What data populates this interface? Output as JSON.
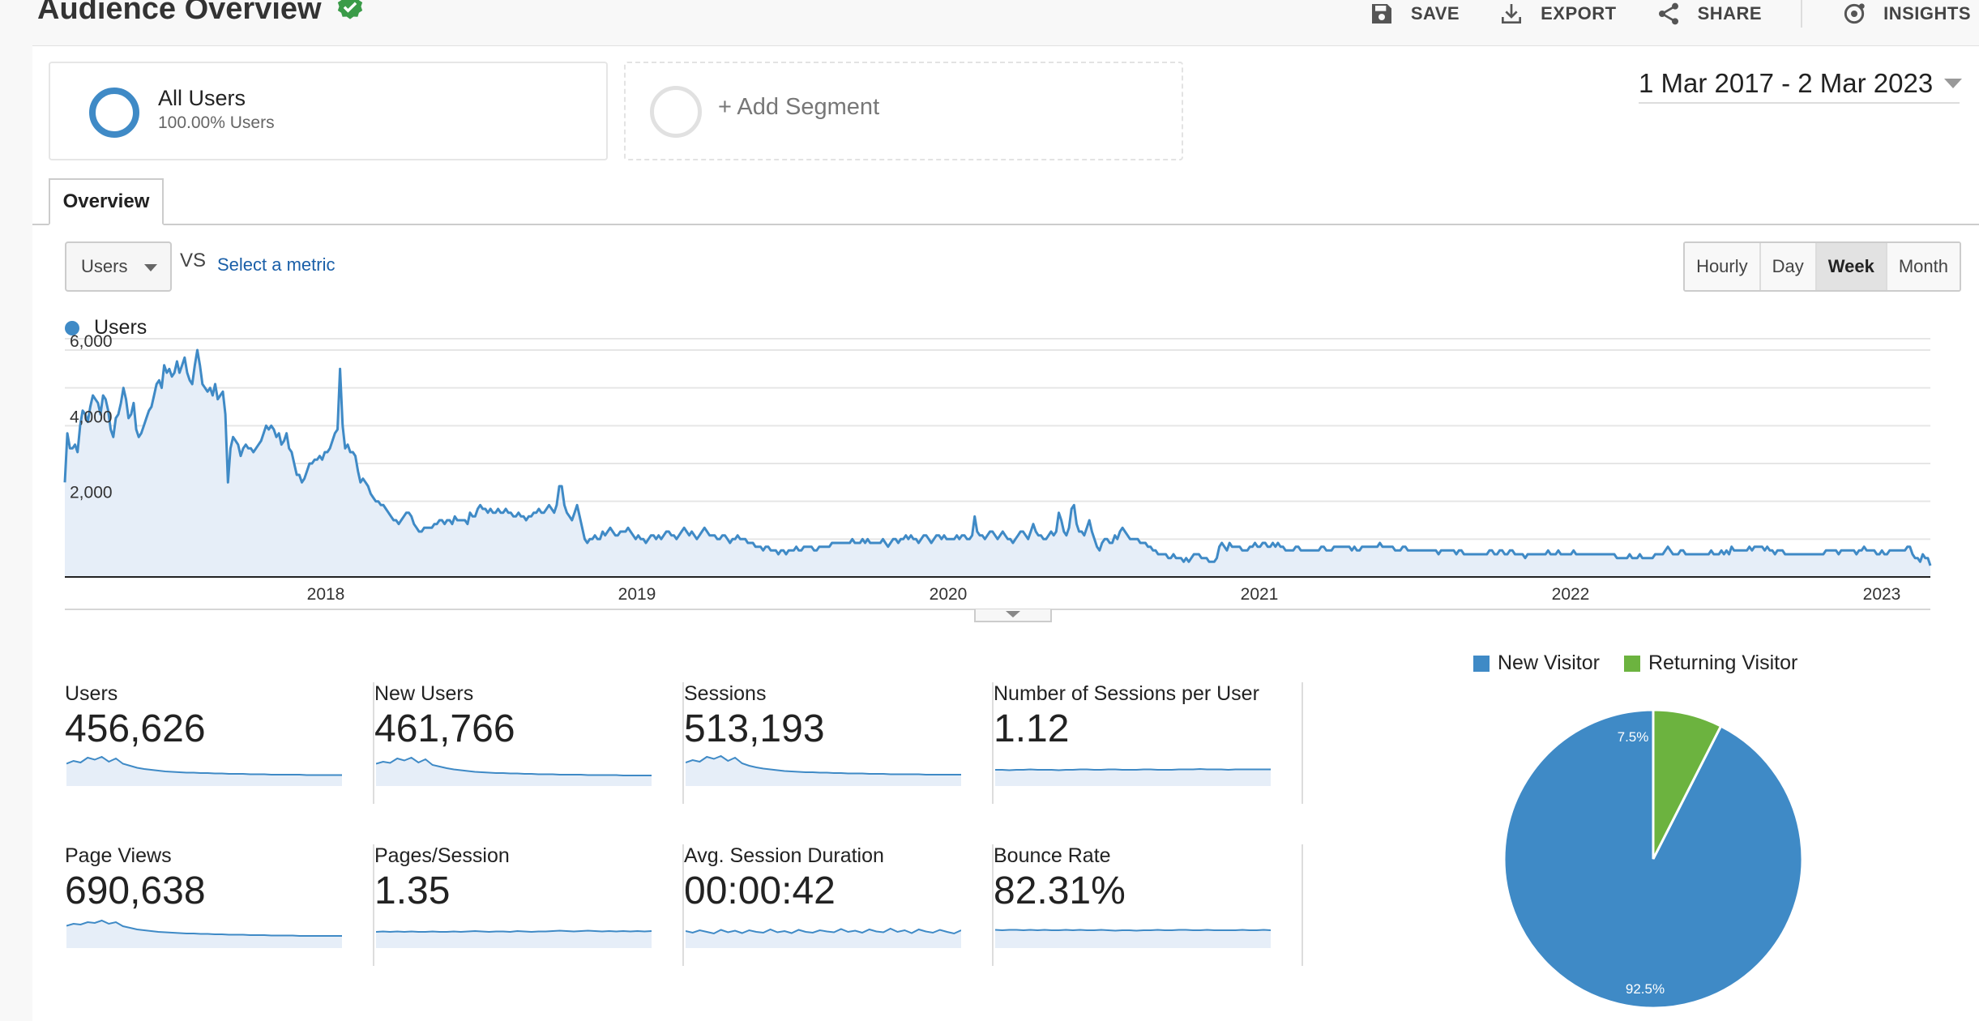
{
  "header": {
    "title": "Audience Overview",
    "verified_icon": "verified-check-icon",
    "actions": [
      {
        "label": "SAVE",
        "icon": "save-icon"
      },
      {
        "label": "EXPORT",
        "icon": "export-icon"
      },
      {
        "label": "SHARE",
        "icon": "share-icon"
      },
      {
        "label": "INSIGHTS",
        "icon": "insights-icon"
      }
    ]
  },
  "segments": {
    "all": {
      "name": "All Users",
      "sub": "100.00% Users"
    },
    "add_label": "+ Add Segment"
  },
  "date_range": "1 Mar 2017 - 2 Mar 2023",
  "tabs": {
    "overview": "Overview"
  },
  "metric_picker": {
    "selected": "Users",
    "vs": "VS",
    "select_metric": "Select a metric"
  },
  "granularity": {
    "options": [
      "Hourly",
      "Day",
      "Week",
      "Month"
    ],
    "active": "Week"
  },
  "colors": {
    "accent": "#3f8ac6",
    "fill": "#e6eef8",
    "returning": "#6cb33f",
    "text": "#222222"
  },
  "chart_data": [
    {
      "type": "area",
      "series": [
        {
          "name": "Users",
          "values": [
            2500,
            3800,
            3400,
            3400,
            3500,
            3300,
            4000,
            4400,
            4300,
            4100,
            4500,
            4800,
            4700,
            4600,
            4300,
            4800,
            4700,
            4400,
            3900,
            3700,
            4200,
            4300,
            4600,
            5000,
            4700,
            4200,
            4300,
            4600,
            3900,
            3700,
            3800,
            4000,
            4200,
            4400,
            4500,
            4800,
            5100,
            5200,
            5000,
            5600,
            5400,
            5500,
            5300,
            5400,
            5700,
            5400,
            5600,
            5800,
            5400,
            5200,
            5100,
            5600,
            6000,
            5600,
            5100,
            5000,
            4900,
            5000,
            4800,
            5100,
            4700,
            4800,
            4900,
            4300,
            2500,
            3400,
            3700,
            3600,
            3500,
            3200,
            3400,
            3500,
            3400,
            3400,
            3300,
            3400,
            3500,
            3600,
            3800,
            4000,
            3900,
            4000,
            3900,
            3700,
            3800,
            3500,
            3600,
            3800,
            3400,
            3300,
            3000,
            2700,
            2700,
            2500,
            2600,
            2800,
            3000,
            3000,
            3100,
            3100,
            3200,
            3100,
            3300,
            3300,
            3400,
            3600,
            3800,
            3900,
            5500,
            4000,
            3400,
            3500,
            3300,
            3300,
            3200,
            2800,
            2500,
            2600,
            2500,
            2400,
            2200,
            2100,
            2000,
            2000,
            1900,
            1900,
            1800,
            1700,
            1600,
            1500,
            1500,
            1400,
            1500,
            1600,
            1700,
            1700,
            1600,
            1400,
            1300,
            1200,
            1200,
            1300,
            1300,
            1300,
            1300,
            1400,
            1400,
            1500,
            1500,
            1400,
            1500,
            1500,
            1400,
            1600,
            1500,
            1500,
            1500,
            1500,
            1400,
            1700,
            1600,
            1600,
            1800,
            1900,
            1800,
            1800,
            1700,
            1800,
            1700,
            1700,
            1800,
            1700,
            1700,
            1800,
            1700,
            1700,
            1600,
            1600,
            1700,
            1600,
            1600,
            1500,
            1600,
            1600,
            1700,
            1700,
            1800,
            1700,
            1700,
            1800,
            1900,
            1800,
            1700,
            1900,
            2400,
            2400,
            1900,
            1700,
            1600,
            1500,
            1700,
            1900,
            1600,
            1300,
            1000,
            900,
            1000,
            1000,
            1100,
            1000,
            1000,
            1200,
            1100,
            1200,
            1300,
            1200,
            1100,
            1100,
            1200,
            1200,
            1200,
            1300,
            1200,
            1100,
            1000,
            1100,
            1000,
            1000,
            900,
            1000,
            1100,
            1100,
            1000,
            1100,
            1000,
            1100,
            1200,
            1200,
            1100,
            1100,
            1000,
            1100,
            1200,
            1300,
            1200,
            1100,
            1200,
            1100,
            1000,
            1100,
            1200,
            1300,
            1200,
            1100,
            1100,
            1100,
            1000,
            1000,
            1100,
            1100,
            1000,
            900,
            1000,
            1000,
            1100,
            1000,
            1000,
            1000,
            900,
            900,
            900,
            800,
            800,
            800,
            700,
            800,
            800,
            700,
            700,
            700,
            600,
            700,
            700,
            600,
            700,
            700,
            700,
            800,
            700,
            700,
            800,
            800,
            800,
            800,
            700,
            700,
            800,
            800,
            800,
            800,
            800,
            900,
            900,
            900,
            900,
            900,
            900,
            900,
            900,
            1000,
            900,
            900,
            900,
            1000,
            900,
            1000,
            900,
            900,
            900,
            900,
            900,
            1000,
            900,
            800,
            900,
            1000,
            1000,
            900,
            1000,
            1000,
            1100,
            1000,
            1100,
            1000,
            1000,
            900,
            1000,
            1100,
            1100,
            1000,
            900,
            1000,
            1100,
            1100,
            1000,
            1100,
            1000,
            1000,
            1000,
            1000,
            1100,
            1000,
            1100,
            1100,
            1000,
            1000,
            1100,
            1600,
            1200,
            1100,
            1100,
            1000,
            1100,
            1200,
            1200,
            1100,
            1000,
            1100,
            1200,
            1100,
            1000,
            1000,
            900,
            1000,
            1100,
            1200,
            1200,
            1100,
            1000,
            1200,
            1400,
            1200,
            1100,
            1100,
            1000,
            1000,
            1100,
            1200,
            1100,
            1200,
            1700,
            1500,
            1200,
            1100,
            1300,
            1800,
            1900,
            1400,
            1200,
            1200,
            1100,
            1300,
            1500,
            1200,
            1000,
            800,
            700,
            900,
            1000,
            1000,
            900,
            900,
            1100,
            1000,
            1200,
            1300,
            1200,
            1100,
            1000,
            1000,
            1000,
            1000,
            900,
            900,
            900,
            800,
            800,
            700,
            700,
            600,
            600,
            600,
            600,
            500,
            500,
            600,
            500,
            500,
            500,
            400,
            500,
            400,
            500,
            600,
            600,
            600,
            500,
            500,
            500,
            400,
            400,
            400,
            500,
            800,
            900,
            800,
            700,
            900,
            800,
            800,
            800,
            800,
            700,
            700,
            700,
            800,
            800,
            900,
            800,
            800,
            900,
            900,
            800,
            800,
            900,
            800,
            900,
            800,
            800,
            700,
            700,
            700,
            700,
            800,
            800,
            700,
            700,
            700,
            700,
            700,
            700,
            700,
            700,
            800,
            800,
            700,
            700,
            700,
            800,
            800,
            800,
            800,
            800,
            800,
            800,
            700,
            800,
            700,
            700,
            800,
            800,
            800,
            800,
            800,
            800,
            800,
            900,
            800,
            800,
            800,
            800,
            800,
            700,
            700,
            700,
            800,
            800,
            700,
            700,
            700,
            700,
            700,
            700,
            700,
            700,
            700,
            700,
            700,
            700,
            600,
            700,
            700,
            700,
            700,
            700,
            700,
            600,
            700,
            700,
            600,
            600,
            600,
            600,
            600,
            600,
            600,
            600,
            600,
            600,
            700,
            700,
            600,
            600,
            700,
            700,
            600,
            600,
            700,
            700,
            600,
            600,
            600,
            600,
            500,
            600,
            600,
            600,
            600,
            600,
            600,
            600,
            600,
            700,
            600,
            600,
            600,
            700,
            600,
            600,
            600,
            600,
            600,
            700,
            600,
            600,
            600,
            600,
            600,
            600,
            600,
            600,
            600,
            600,
            600,
            600,
            600,
            600,
            600,
            600,
            500,
            500,
            500,
            500,
            500,
            600,
            500,
            500,
            500,
            600,
            500,
            500,
            500,
            500,
            500,
            600,
            600,
            600,
            600,
            700,
            800,
            700,
            600,
            600,
            600,
            700,
            700,
            600,
            600,
            600,
            600,
            600,
            600,
            600,
            600,
            600,
            600,
            700,
            600,
            600,
            600,
            700,
            600,
            700,
            600,
            800,
            700,
            700,
            700,
            700,
            700,
            700,
            800,
            700,
            800,
            800,
            800,
            800,
            700,
            800,
            700,
            700,
            600,
            700,
            700,
            700,
            600,
            600,
            600,
            600,
            600,
            600,
            600,
            600,
            600,
            600,
            600,
            600,
            600,
            600,
            600,
            600,
            700,
            700,
            700,
            700,
            700,
            600,
            700,
            700,
            700,
            700,
            700,
            700,
            600,
            700,
            700,
            800,
            700,
            700,
            700,
            700,
            600,
            600,
            700,
            600,
            600,
            700,
            700,
            700,
            700,
            700,
            700,
            700,
            800,
            800,
            600,
            500,
            500,
            400,
            600,
            500,
            500,
            300
          ]
        }
      ],
      "x_ticks": [
        "2018",
        "2019",
        "2020",
        "2021",
        "2022",
        "2023"
      ],
      "y_ticks": [
        "2,000",
        "4,000",
        "6,000"
      ],
      "ylim": [
        0,
        6000
      ],
      "grid": true,
      "legend": "top-left"
    },
    {
      "type": "pie",
      "slices": [
        {
          "label": "New Visitor",
          "value": 92.5,
          "text": "92.5%"
        },
        {
          "label": "Returning Visitor",
          "value": 7.5,
          "text": "7.5%"
        }
      ],
      "legend": "top"
    }
  ],
  "metrics": [
    {
      "label": "Users",
      "value": "456,626",
      "spark": [
        55,
        62,
        58,
        70,
        65,
        72,
        60,
        68,
        55,
        50,
        45,
        42,
        40,
        38,
        36,
        35,
        34,
        33,
        33,
        32,
        32,
        31,
        31,
        30,
        30,
        30,
        29,
        29,
        29,
        28,
        28,
        28,
        28,
        28,
        27,
        27,
        27,
        27,
        27,
        27
      ]
    },
    {
      "label": "New Users",
      "value": "461,766",
      "spark": [
        55,
        60,
        57,
        68,
        63,
        70,
        58,
        66,
        52,
        48,
        44,
        41,
        39,
        37,
        35,
        34,
        33,
        32,
        32,
        31,
        31,
        30,
        30,
        29,
        29,
        29,
        28,
        28,
        28,
        28,
        27,
        27,
        27,
        27,
        27,
        26,
        26,
        26,
        26,
        26
      ]
    },
    {
      "label": "Sessions",
      "value": "513,193",
      "spark": [
        58,
        64,
        60,
        72,
        67,
        74,
        62,
        70,
        56,
        50,
        46,
        43,
        41,
        39,
        37,
        36,
        35,
        34,
        34,
        33,
        33,
        32,
        32,
        31,
        31,
        31,
        30,
        30,
        30,
        29,
        29,
        29,
        29,
        29,
        28,
        28,
        28,
        28,
        28,
        28
      ]
    },
    {
      "label": "Number of Sessions per User",
      "value": "1.12",
      "spark": [
        40,
        40,
        39,
        40,
        40,
        41,
        40,
        40,
        40,
        39,
        40,
        40,
        41,
        41,
        40,
        40,
        41,
        41,
        40,
        40,
        40,
        41,
        41,
        40,
        40,
        40,
        41,
        41,
        41,
        42,
        41,
        41,
        41,
        40,
        41,
        41,
        41,
        41,
        41,
        41
      ]
    },
    {
      "label": "Page Views",
      "value": "690,638",
      "spark": [
        55,
        60,
        58,
        64,
        62,
        68,
        60,
        64,
        54,
        50,
        46,
        44,
        42,
        40,
        39,
        38,
        37,
        36,
        36,
        35,
        35,
        34,
        34,
        33,
        33,
        33,
        32,
        32,
        32,
        31,
        31,
        31,
        31,
        30,
        30,
        30,
        30,
        30,
        30,
        30
      ]
    },
    {
      "label": "Pages/Session",
      "value": "1.35",
      "spark": [
        40,
        41,
        40,
        41,
        40,
        41,
        40,
        40,
        41,
        40,
        40,
        41,
        40,
        41,
        42,
        41,
        40,
        41,
        41,
        40,
        42,
        41,
        40,
        41,
        41,
        42,
        43,
        42,
        41,
        42,
        43,
        42,
        41,
        42,
        41,
        42,
        41,
        42,
        41,
        42
      ]
    },
    {
      "label": "Avg. Session Duration",
      "value": "00:00:42",
      "spark": [
        42,
        38,
        44,
        40,
        36,
        45,
        39,
        43,
        37,
        44,
        40,
        38,
        46,
        39,
        42,
        37,
        45,
        40,
        38,
        44,
        41,
        39,
        47,
        40,
        43,
        38,
        46,
        41,
        39,
        48,
        40,
        44,
        37,
        46,
        41,
        38,
        45,
        40,
        36,
        44
      ]
    },
    {
      "label": "Bounce Rate",
      "value": "82.31%",
      "spark": [
        45,
        44,
        45,
        45,
        44,
        45,
        44,
        45,
        44,
        44,
        45,
        44,
        45,
        44,
        44,
        45,
        44,
        43,
        44,
        44,
        43,
        44,
        44,
        45,
        44,
        44,
        45,
        45,
        44,
        44,
        45,
        44,
        44,
        44,
        44,
        45,
        44,
        44,
        45,
        44
      ]
    }
  ]
}
